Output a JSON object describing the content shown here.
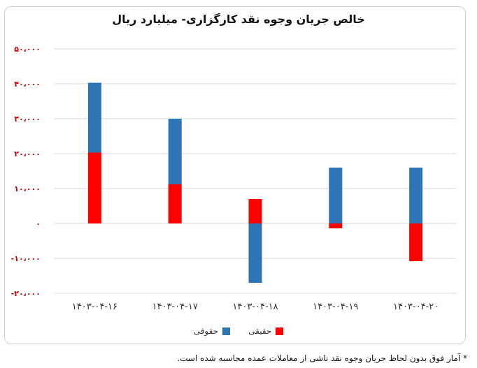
{
  "chart_data": {
    "type": "bar",
    "title": "خالص جریان وجوه نقد کارگزاری- میلیارد ریال",
    "categories": [
      "۱۴۰۳-۰۴-۱۶",
      "۱۴۰۳-۰۴-۱۷",
      "۱۴۰۳-۰۴-۱۸",
      "۱۴۰۳-۰۴-۱۹",
      "۱۴۰۳-۰۴-۲۰"
    ],
    "series": [
      {
        "name": "حقیقی",
        "color": "#ff0000",
        "values": [
          20300,
          11200,
          7000,
          -1400,
          -10800
        ]
      },
      {
        "name": "حقوقی",
        "color": "#2e75b6",
        "values": [
          20000,
          18800,
          -17000,
          16000,
          16000
        ]
      }
    ],
    "ylim": [
      -20000,
      50000
    ],
    "yticks": [
      -20000,
      -10000,
      0,
      10000,
      20000,
      30000,
      40000,
      50000
    ],
    "ytick_labels": [
      "-۲۰،۰۰۰",
      "-۱۰،۰۰۰",
      "۰",
      "۱۰،۰۰۰",
      "۲۰،۰۰۰",
      "۳۰،۰۰۰",
      "۴۰،۰۰۰",
      "۵۰،۰۰۰"
    ],
    "grid": true,
    "legend_position": "bottom",
    "xlabel": "",
    "ylabel": ""
  },
  "footnote": "* آمار فوق بدون لحاظ جریان وجوه نقد ناشی از معاملات عمده محاسبه شده است."
}
